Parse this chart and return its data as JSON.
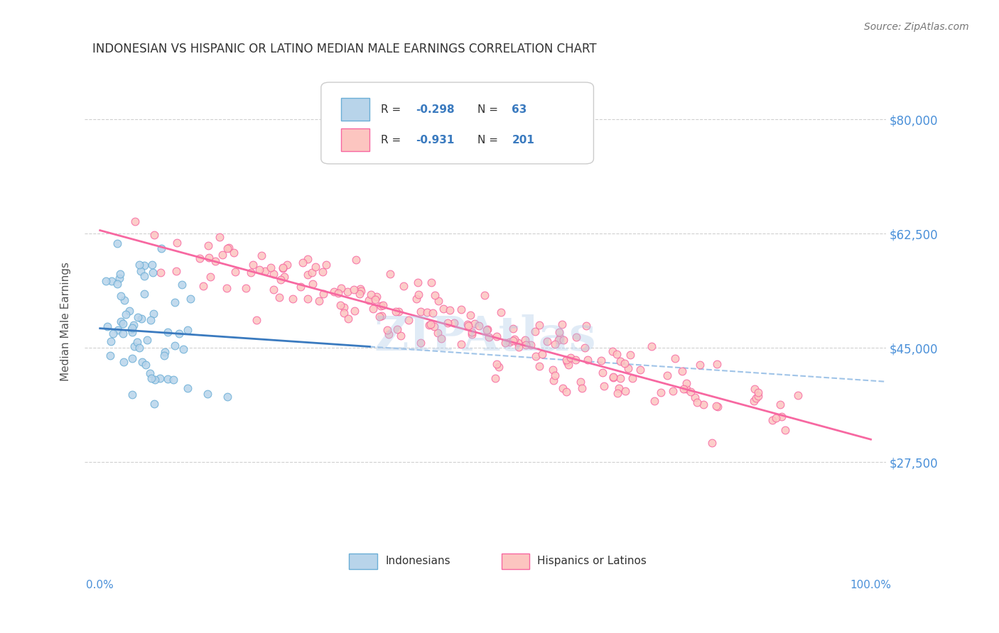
{
  "title": "INDONESIAN VS HISPANIC OR LATINO MEDIAN MALE EARNINGS CORRELATION CHART",
  "source": "Source: ZipAtlas.com",
  "xlabel": "",
  "ylabel": "Median Male Earnings",
  "yticks": [
    27500,
    45000,
    62500,
    80000
  ],
  "ytick_labels": [
    "$27,500",
    "$45,000",
    "$62,500",
    "$80,000"
  ],
  "ymin": 10000,
  "ymax": 85000,
  "xmin": 0.0,
  "xmax": 1.0,
  "blue_color": "#6baed6",
  "blue_fill": "#b8d4ea",
  "pink_color": "#f768a1",
  "pink_fill": "#fcc5c0",
  "r_blue": -0.298,
  "n_blue": 63,
  "r_pink": -0.931,
  "n_pink": 201,
  "blue_intercept": 48000,
  "blue_slope": -8000,
  "pink_intercept": 63000,
  "pink_slope": -32000,
  "watermark": "ZIPAtlas",
  "watermark_color": "#a8c8e8",
  "background_color": "#ffffff",
  "grid_color": "#d0d0d0",
  "title_color": "#333333",
  "tick_label_color": "#4a90d9"
}
